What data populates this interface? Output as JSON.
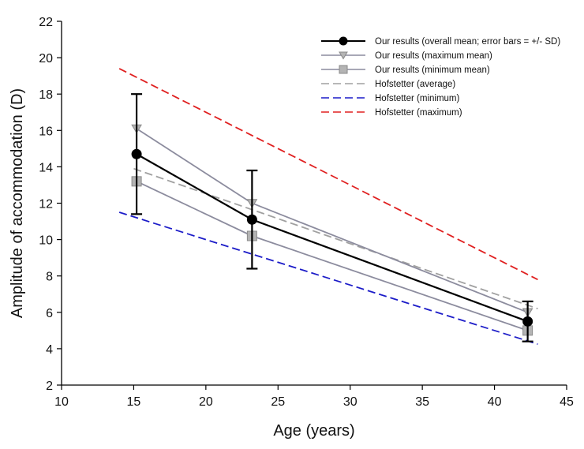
{
  "chart_data": {
    "type": "line",
    "title": "",
    "xlabel": "Age (years)",
    "ylabel": "Amplitude of accommodation (D)",
    "xlim": [
      10,
      45
    ],
    "ylim": [
      2,
      22
    ],
    "xticks": [
      10,
      15,
      20,
      25,
      30,
      35,
      40,
      45
    ],
    "yticks": [
      2,
      4,
      6,
      8,
      10,
      12,
      14,
      16,
      18,
      20,
      22
    ],
    "grid": false,
    "legend_position": "top-right",
    "series": [
      {
        "name": "Our results (overall mean; error bars = +/- SD)",
        "x": [
          15.2,
          23.2,
          42.3
        ],
        "y": [
          14.7,
          11.1,
          5.5
        ],
        "err": [
          3.3,
          2.7,
          1.1
        ],
        "color": "#000000",
        "dash": "solid",
        "marker": "circle"
      },
      {
        "name": "Our results (maximum mean)",
        "x": [
          15.2,
          23.2,
          42.3
        ],
        "y": [
          16.1,
          12.0,
          6.0
        ],
        "color": "#8c8c9e",
        "dash": "solid",
        "marker": "triangle-down"
      },
      {
        "name": "Our results (minimum mean)",
        "x": [
          15.2,
          23.2,
          42.3
        ],
        "y": [
          13.2,
          10.2,
          5.0
        ],
        "color": "#8c8c9e",
        "dash": "solid",
        "marker": "square"
      },
      {
        "name": "Hofstetter (average)",
        "x": [
          15,
          43
        ],
        "y": [
          13.9,
          6.2
        ],
        "color": "#a0a0a0",
        "dash": "dashed",
        "marker": "none"
      },
      {
        "name": "Hofstetter (minimum)",
        "x": [
          14,
          43
        ],
        "y": [
          11.5,
          4.25
        ],
        "color": "#1c1cc8",
        "dash": "dashed",
        "marker": "none"
      },
      {
        "name": "Hofstetter (maximum)",
        "x": [
          14,
          43
        ],
        "y": [
          19.4,
          7.8
        ],
        "color": "#e02020",
        "dash": "dashed",
        "marker": "none"
      }
    ]
  }
}
